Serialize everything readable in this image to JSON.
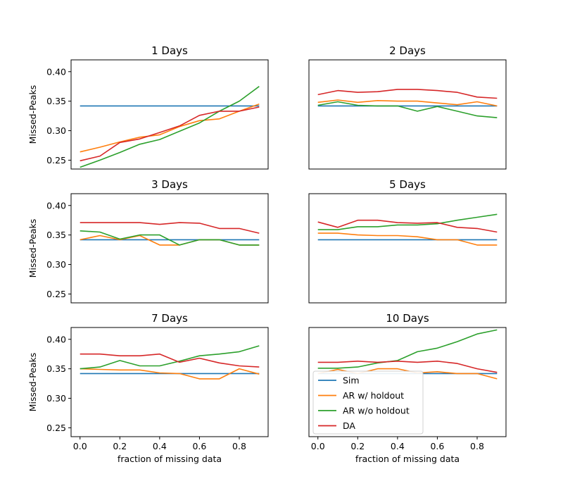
{
  "chart_data": {
    "type": "line",
    "layout": "3x2 grid",
    "xlabel": "fraction of missing data",
    "ylabel": "Missed-Peaks",
    "xlim": [
      -0.045,
      0.945
    ],
    "ylim": [
      0.235,
      0.42
    ],
    "xticks": [
      "0.0",
      "0.2",
      "0.4",
      "0.6",
      "0.8"
    ],
    "xtick_values": [
      0.0,
      0.2,
      0.4,
      0.6,
      0.8
    ],
    "yticks": [
      "0.25",
      "0.30",
      "0.35",
      "0.40"
    ],
    "ytick_values": [
      0.25,
      0.3,
      0.35,
      0.4
    ],
    "x": [
      0.0,
      0.1,
      0.2,
      0.3,
      0.4,
      0.5,
      0.6,
      0.7,
      0.8,
      0.9
    ],
    "legend": {
      "location": "lower-left of 10 Days panel",
      "entries": [
        "Sim",
        "AR w/ holdout",
        "AR w/o holdout",
        "DA"
      ]
    },
    "series_colors": {
      "Sim": "#1f77b4",
      "AR w/ holdout": "#ff7f0e",
      "AR w/o holdout": "#2ca02c",
      "DA": "#d62728"
    },
    "panels": [
      {
        "title": "1 Days",
        "series": [
          {
            "name": "Sim",
            "values": [
              0.342,
              0.342,
              0.342,
              0.342,
              0.342,
              0.342,
              0.342,
              0.342,
              0.342,
              0.342
            ]
          },
          {
            "name": "AR w/ holdout",
            "values": [
              0.264,
              0.272,
              0.281,
              0.289,
              0.293,
              0.307,
              0.317,
              0.32,
              0.333,
              0.345
            ]
          },
          {
            "name": "AR w/o holdout",
            "values": [
              0.238,
              0.25,
              0.263,
              0.277,
              0.285,
              0.299,
              0.313,
              0.333,
              0.35,
              0.375
            ]
          },
          {
            "name": "DA",
            "values": [
              0.249,
              0.257,
              0.28,
              0.286,
              0.297,
              0.308,
              0.326,
              0.333,
              0.333,
              0.34
            ]
          }
        ]
      },
      {
        "title": "2 Days",
        "series": [
          {
            "name": "Sim",
            "values": [
              0.342,
              0.342,
              0.342,
              0.342,
              0.342,
              0.342,
              0.342,
              0.342,
              0.342,
              0.342
            ]
          },
          {
            "name": "AR w/ holdout",
            "values": [
              0.348,
              0.352,
              0.348,
              0.351,
              0.35,
              0.35,
              0.347,
              0.344,
              0.349,
              0.342
            ]
          },
          {
            "name": "AR w/o holdout",
            "values": [
              0.343,
              0.349,
              0.343,
              0.342,
              0.342,
              0.333,
              0.341,
              0.333,
              0.325,
              0.322
            ]
          },
          {
            "name": "DA",
            "values": [
              0.361,
              0.368,
              0.365,
              0.366,
              0.37,
              0.37,
              0.368,
              0.365,
              0.357,
              0.355
            ]
          }
        ]
      },
      {
        "title": "3 Days",
        "series": [
          {
            "name": "Sim",
            "values": [
              0.342,
              0.342,
              0.342,
              0.342,
              0.342,
              0.342,
              0.342,
              0.342,
              0.342,
              0.342
            ]
          },
          {
            "name": "AR w/ holdout",
            "values": [
              0.342,
              0.349,
              0.342,
              0.349,
              0.333,
              0.333,
              0.342,
              0.342,
              0.333,
              0.333
            ]
          },
          {
            "name": "AR w/o holdout",
            "values": [
              0.357,
              0.355,
              0.343,
              0.35,
              0.35,
              0.333,
              0.342,
              0.342,
              0.333,
              0.333
            ]
          },
          {
            "name": "DA",
            "values": [
              0.371,
              0.371,
              0.371,
              0.371,
              0.368,
              0.371,
              0.37,
              0.361,
              0.361,
              0.353
            ]
          }
        ]
      },
      {
        "title": "5 Days",
        "series": [
          {
            "name": "Sim",
            "values": [
              0.342,
              0.342,
              0.342,
              0.342,
              0.342,
              0.342,
              0.342,
              0.342,
              0.342,
              0.342
            ]
          },
          {
            "name": "AR w/ holdout",
            "values": [
              0.353,
              0.353,
              0.35,
              0.349,
              0.349,
              0.347,
              0.342,
              0.342,
              0.333,
              0.333
            ]
          },
          {
            "name": "AR w/o holdout",
            "values": [
              0.359,
              0.359,
              0.364,
              0.364,
              0.367,
              0.367,
              0.369,
              0.375,
              0.38,
              0.385
            ]
          },
          {
            "name": "DA",
            "values": [
              0.372,
              0.363,
              0.375,
              0.375,
              0.371,
              0.37,
              0.371,
              0.363,
              0.361,
              0.355
            ]
          }
        ]
      },
      {
        "title": "7 Days",
        "series": [
          {
            "name": "Sim",
            "values": [
              0.342,
              0.342,
              0.342,
              0.342,
              0.342,
              0.342,
              0.342,
              0.342,
              0.342,
              0.342
            ]
          },
          {
            "name": "AR w/ holdout",
            "values": [
              0.35,
              0.349,
              0.348,
              0.348,
              0.343,
              0.342,
              0.333,
              0.333,
              0.35,
              0.341
            ]
          },
          {
            "name": "AR w/o holdout",
            "values": [
              0.35,
              0.353,
              0.364,
              0.355,
              0.355,
              0.363,
              0.372,
              0.375,
              0.379,
              0.389
            ]
          },
          {
            "name": "DA",
            "values": [
              0.375,
              0.375,
              0.372,
              0.372,
              0.375,
              0.361,
              0.368,
              0.36,
              0.355,
              0.353
            ]
          }
        ]
      },
      {
        "title": "10 Days",
        "series": [
          {
            "name": "Sim",
            "values": [
              0.342,
              0.342,
              0.342,
              0.342,
              0.342,
              0.342,
              0.342,
              0.342,
              0.342,
              0.342
            ]
          },
          {
            "name": "AR w/ holdout",
            "values": [
              0.342,
              0.349,
              0.342,
              0.35,
              0.35,
              0.343,
              0.345,
              0.342,
              0.342,
              0.333
            ]
          },
          {
            "name": "AR w/o holdout",
            "values": [
              0.351,
              0.351,
              0.353,
              0.36,
              0.364,
              0.379,
              0.385,
              0.396,
              0.409,
              0.416
            ]
          },
          {
            "name": "DA",
            "values": [
              0.361,
              0.361,
              0.363,
              0.361,
              0.363,
              0.361,
              0.363,
              0.359,
              0.35,
              0.344
            ]
          }
        ]
      }
    ]
  }
}
